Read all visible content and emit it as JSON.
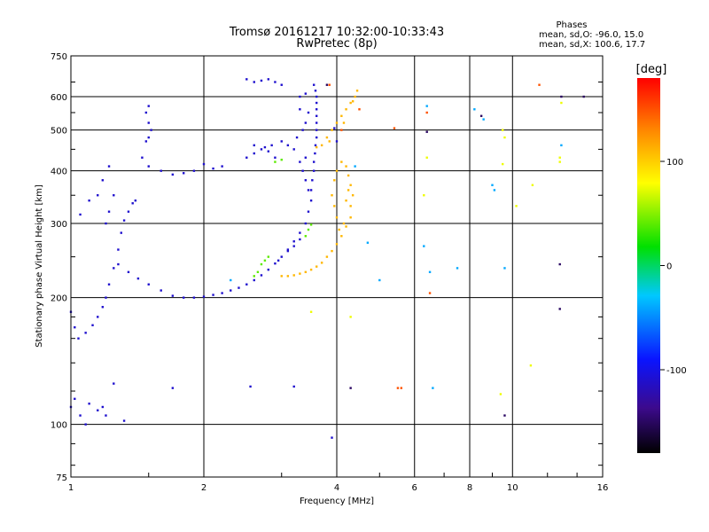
{
  "chart_data": {
    "type": "scatter",
    "title": "Tromsø 20161217 10:32:00-10:33:43",
    "subtitle": "RwPretec (8p)",
    "xlabel": "Frequency [MHz]",
    "ylabel": "Stationary phase Virtual Height [km]",
    "x_scale": "log",
    "y_scale": "log",
    "xlim": [
      1,
      16
    ],
    "ylim": [
      75,
      750
    ],
    "x_ticks": [
      1,
      2,
      4,
      6,
      8,
      10,
      16
    ],
    "y_ticks": [
      75,
      100,
      200,
      300,
      400,
      500,
      600,
      750
    ],
    "grid": true,
    "phase_stats": {
      "heading": "Phases",
      "line_o": "mean, sd,O: -96.0, 15.0",
      "line_x": "mean, sd,X: 100.6, 17.7"
    },
    "colorbar": {
      "label": "[deg]",
      "range": [
        -180,
        180
      ],
      "ticks": [
        100,
        0,
        -100
      ]
    },
    "series": [
      {
        "color_phase_deg": -110,
        "points": [
          [
            1.0,
            185
          ],
          [
            1.02,
            170
          ],
          [
            1.04,
            160
          ],
          [
            1.08,
            165
          ],
          [
            1.12,
            172
          ],
          [
            1.15,
            180
          ],
          [
            1.18,
            190
          ],
          [
            1.2,
            200
          ],
          [
            1.22,
            215
          ],
          [
            1.25,
            235
          ],
          [
            1.28,
            260
          ],
          [
            1.3,
            285
          ],
          [
            1.32,
            305
          ],
          [
            1.35,
            320
          ],
          [
            1.38,
            335
          ],
          [
            1.4,
            340
          ],
          [
            1.2,
            300
          ],
          [
            1.22,
            320
          ],
          [
            1.25,
            350
          ],
          [
            1.15,
            350
          ],
          [
            1.1,
            340
          ],
          [
            1.05,
            315
          ],
          [
            1.18,
            380
          ],
          [
            1.22,
            410
          ],
          [
            1.28,
            240
          ],
          [
            1.35,
            230
          ],
          [
            1.42,
            222
          ],
          [
            1.5,
            215
          ],
          [
            1.6,
            208
          ],
          [
            1.7,
            202
          ],
          [
            1.8,
            200
          ],
          [
            1.9,
            200
          ],
          [
            2.0,
            201
          ],
          [
            2.1,
            203
          ],
          [
            2.2,
            205
          ],
          [
            2.3,
            208
          ],
          [
            2.4,
            211
          ],
          [
            2.5,
            215
          ],
          [
            2.6,
            220
          ],
          [
            2.7,
            226
          ],
          [
            2.8,
            233
          ],
          [
            2.9,
            241
          ],
          [
            3.0,
            250
          ],
          [
            3.1,
            260
          ],
          [
            3.2,
            272
          ],
          [
            3.3,
            285
          ],
          [
            3.4,
            300
          ],
          [
            3.45,
            320
          ],
          [
            3.5,
            340
          ],
          [
            3.5,
            360
          ],
          [
            3.52,
            380
          ],
          [
            3.55,
            400
          ],
          [
            3.55,
            420
          ],
          [
            3.57,
            440
          ],
          [
            3.58,
            460
          ],
          [
            3.6,
            480
          ],
          [
            3.6,
            500
          ],
          [
            3.6,
            520
          ],
          [
            3.6,
            540
          ],
          [
            3.6,
            560
          ],
          [
            3.6,
            580
          ],
          [
            3.6,
            600
          ],
          [
            3.58,
            620
          ],
          [
            3.55,
            640
          ],
          [
            3.45,
            360
          ],
          [
            3.4,
            380
          ],
          [
            3.35,
            400
          ],
          [
            3.3,
            420
          ],
          [
            3.4,
            430
          ],
          [
            3.2,
            450
          ],
          [
            3.1,
            460
          ],
          [
            3.0,
            470
          ],
          [
            3.25,
            480
          ],
          [
            3.35,
            500
          ],
          [
            3.45,
            550
          ],
          [
            3.4,
            520
          ],
          [
            3.3,
            560
          ],
          [
            2.9,
            430
          ],
          [
            2.8,
            445
          ],
          [
            2.7,
            450
          ],
          [
            2.6,
            440
          ],
          [
            2.5,
            430
          ],
          [
            2.75,
            455
          ],
          [
            2.85,
            460
          ],
          [
            2.6,
            460
          ],
          [
            2.2,
            410
          ],
          [
            2.1,
            405
          ],
          [
            2.0,
            415
          ],
          [
            1.9,
            400
          ],
          [
            1.8,
            395
          ],
          [
            1.7,
            392
          ],
          [
            1.6,
            400
          ],
          [
            1.5,
            410
          ],
          [
            1.45,
            430
          ],
          [
            1.48,
            470
          ],
          [
            1.5,
            480
          ],
          [
            1.52,
            500
          ],
          [
            1.5,
            520
          ],
          [
            1.48,
            550
          ],
          [
            1.5,
            570
          ],
          [
            2.5,
            660
          ],
          [
            2.6,
            650
          ],
          [
            2.7,
            655
          ],
          [
            2.8,
            660
          ],
          [
            2.9,
            650
          ],
          [
            3.0,
            640
          ],
          [
            3.3,
            600
          ],
          [
            3.4,
            610
          ],
          [
            1.0,
            110
          ],
          [
            1.02,
            115
          ],
          [
            1.05,
            105
          ],
          [
            1.08,
            100
          ],
          [
            1.1,
            112
          ],
          [
            1.15,
            108
          ],
          [
            1.18,
            110
          ],
          [
            1.2,
            105
          ],
          [
            1.25,
            125
          ],
          [
            1.32,
            102
          ],
          [
            1.7,
            122
          ],
          [
            2.55,
            123
          ],
          [
            3.2,
            123
          ],
          [
            3.9,
            93
          ],
          [
            3.95,
            505
          ],
          [
            4.0,
            470
          ],
          [
            3.3,
            275
          ],
          [
            3.2,
            265
          ],
          [
            3.1,
            258
          ],
          [
            2.95,
            245
          ]
        ]
      },
      {
        "color_phase_deg": 110,
        "points": [
          [
            3.0,
            225
          ],
          [
            3.1,
            225
          ],
          [
            3.2,
            226
          ],
          [
            3.3,
            228
          ],
          [
            3.4,
            230
          ],
          [
            3.5,
            233
          ],
          [
            3.6,
            237
          ],
          [
            3.7,
            242
          ],
          [
            3.8,
            250
          ],
          [
            3.9,
            258
          ],
          [
            4.0,
            268
          ],
          [
            4.1,
            280
          ],
          [
            4.2,
            295
          ],
          [
            4.3,
            310
          ],
          [
            4.3,
            330
          ],
          [
            4.35,
            350
          ],
          [
            4.3,
            370
          ],
          [
            4.25,
            390
          ],
          [
            4.2,
            410
          ],
          [
            4.1,
            420
          ],
          [
            4.0,
            400
          ],
          [
            3.95,
            380
          ],
          [
            3.9,
            350
          ],
          [
            3.95,
            330
          ],
          [
            4.0,
            310
          ],
          [
            4.05,
            290
          ],
          [
            4.15,
            300
          ],
          [
            4.2,
            340
          ],
          [
            4.25,
            360
          ],
          [
            3.8,
            480
          ],
          [
            3.9,
            500
          ],
          [
            4.0,
            520
          ],
          [
            4.1,
            540
          ],
          [
            4.2,
            560
          ],
          [
            4.3,
            580
          ],
          [
            4.4,
            600
          ],
          [
            4.45,
            620
          ],
          [
            3.7,
            460
          ],
          [
            3.6,
            455
          ],
          [
            3.85,
            470
          ],
          [
            4.35,
            585
          ],
          [
            4.15,
            520
          ]
        ]
      },
      {
        "color_phase_deg": 40,
        "points": [
          [
            2.7,
            240
          ],
          [
            2.75,
            245
          ],
          [
            2.8,
            250
          ],
          [
            3.4,
            280
          ],
          [
            3.45,
            290
          ],
          [
            3.5,
            298
          ],
          [
            2.9,
            420
          ],
          [
            3.0,
            425
          ],
          [
            2.6,
            225
          ],
          [
            2.65,
            230
          ]
        ]
      },
      {
        "color_phase_deg": 150,
        "points": [
          [
            3.85,
            640
          ],
          [
            4.1,
            500
          ],
          [
            4.5,
            560
          ],
          [
            5.5,
            122
          ],
          [
            5.6,
            122
          ],
          [
            6.5,
            205
          ],
          [
            5.4,
            505
          ],
          [
            6.4,
            550
          ],
          [
            11.5,
            640
          ]
        ]
      },
      {
        "color_phase_deg": 75,
        "points": [
          [
            6.3,
            350
          ],
          [
            6.4,
            430
          ],
          [
            9.5,
            500
          ],
          [
            9.6,
            480
          ],
          [
            10.2,
            330
          ],
          [
            11.1,
            370
          ],
          [
            11.0,
            138
          ],
          [
            9.4,
            118
          ],
          [
            4.3,
            180
          ],
          [
            3.5,
            185
          ],
          [
            12.8,
            430
          ],
          [
            12.8,
            420
          ],
          [
            12.9,
            580
          ],
          [
            9.5,
            415
          ]
        ]
      },
      {
        "color_phase_deg": -40,
        "points": [
          [
            6.3,
            265
          ],
          [
            6.5,
            230
          ],
          [
            6.6,
            122
          ],
          [
            7.5,
            235
          ],
          [
            8.2,
            560
          ],
          [
            8.6,
            530
          ],
          [
            9.0,
            370
          ],
          [
            9.1,
            360
          ],
          [
            9.6,
            235
          ],
          [
            6.4,
            570
          ],
          [
            12.9,
            460
          ],
          [
            5.0,
            220
          ],
          [
            4.7,
            270
          ],
          [
            4.4,
            410
          ],
          [
            2.3,
            220
          ]
        ]
      },
      {
        "color_phase_deg": -150,
        "points": [
          [
            9.6,
            105
          ],
          [
            12.8,
            188
          ],
          [
            12.8,
            240
          ],
          [
            14.5,
            600
          ],
          [
            12.9,
            600
          ],
          [
            8.5,
            540
          ],
          [
            3.8,
            640
          ],
          [
            6.4,
            495
          ],
          [
            4.3,
            122
          ]
        ]
      }
    ]
  }
}
